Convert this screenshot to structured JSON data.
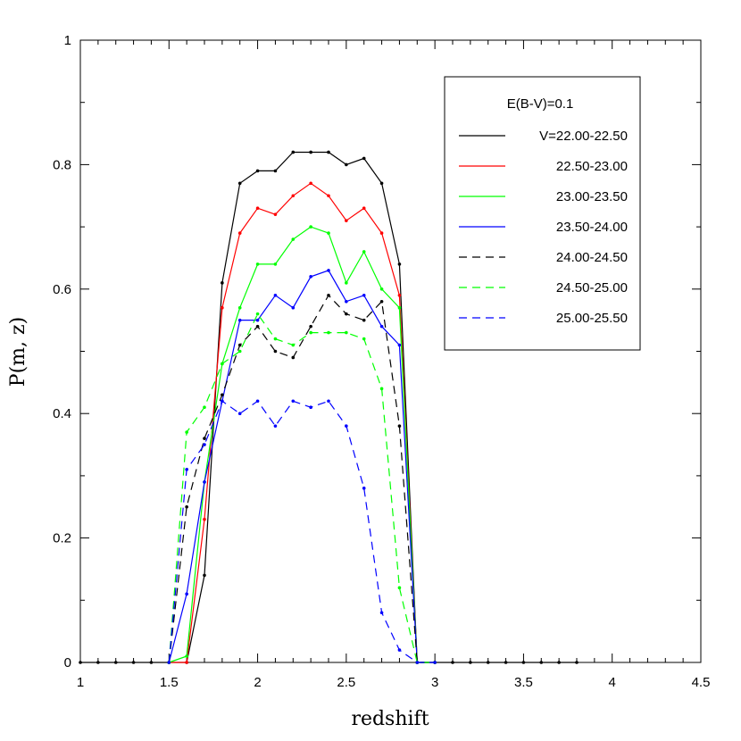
{
  "chart_data": {
    "type": "line",
    "xlabel": "redshift",
    "ylabel": "P(m, z)",
    "xlim": [
      1,
      4.5
    ],
    "ylim": [
      0,
      1
    ],
    "x_ticks": [
      "1",
      "1.5",
      "2",
      "2.5",
      "3",
      "3.5",
      "4",
      "4.5"
    ],
    "y_ticks": [
      "0",
      "0.2",
      "0.4",
      "0.6",
      "0.8",
      "1"
    ],
    "grid": false,
    "legend_position": "top-right",
    "legend_title": "E(B-V)=0.1",
    "series": [
      {
        "name": "V=22.00-22.50",
        "color": "#000000",
        "dash": "solid",
        "x": [
          1.0,
          1.1,
          1.2,
          1.3,
          1.4,
          1.5,
          1.6,
          1.7,
          1.8,
          1.9,
          2.0,
          2.1,
          2.2,
          2.3,
          2.4,
          2.5,
          2.6,
          2.7,
          2.8,
          2.9,
          3.0,
          3.1,
          3.2,
          3.3,
          3.4,
          3.5,
          3.6,
          3.7,
          3.8
        ],
        "y": [
          0,
          0,
          0,
          0,
          0,
          0,
          0,
          0.14,
          0.61,
          0.77,
          0.79,
          0.79,
          0.82,
          0.82,
          0.82,
          0.8,
          0.81,
          0.77,
          0.64,
          0,
          0,
          0,
          0,
          0,
          0,
          0,
          0,
          0,
          0
        ]
      },
      {
        "name": "22.50-23.00",
        "color": "#ff0000",
        "dash": "solid",
        "x": [
          1.5,
          1.6,
          1.7,
          1.8,
          1.9,
          2.0,
          2.1,
          2.2,
          2.3,
          2.4,
          2.5,
          2.6,
          2.7,
          2.8,
          2.9,
          3.0
        ],
        "y": [
          0,
          0,
          0.23,
          0.57,
          0.69,
          0.73,
          0.72,
          0.75,
          0.77,
          0.75,
          0.71,
          0.73,
          0.69,
          0.59,
          0,
          0
        ]
      },
      {
        "name": "23.00-23.50",
        "color": "#00ff00",
        "dash": "solid",
        "x": [
          1.5,
          1.6,
          1.7,
          1.8,
          1.9,
          2.0,
          2.1,
          2.2,
          2.3,
          2.4,
          2.5,
          2.6,
          2.7,
          2.8,
          2.9,
          3.0
        ],
        "y": [
          0,
          0.01,
          0.29,
          0.48,
          0.57,
          0.64,
          0.64,
          0.68,
          0.7,
          0.69,
          0.61,
          0.66,
          0.6,
          0.57,
          0,
          0
        ]
      },
      {
        "name": "23.50-24.00",
        "color": "#0000ff",
        "dash": "solid",
        "x": [
          1.5,
          1.6,
          1.7,
          1.8,
          1.9,
          2.0,
          2.1,
          2.2,
          2.3,
          2.4,
          2.5,
          2.6,
          2.7,
          2.8,
          2.9,
          3.0
        ],
        "y": [
          0,
          0.11,
          0.29,
          0.42,
          0.55,
          0.55,
          0.59,
          0.57,
          0.62,
          0.63,
          0.58,
          0.59,
          0.54,
          0.51,
          0,
          0
        ]
      },
      {
        "name": "24.00-24.50",
        "color": "#000000",
        "dash": "dashed",
        "x": [
          1.5,
          1.6,
          1.7,
          1.8,
          1.9,
          2.0,
          2.1,
          2.2,
          2.3,
          2.4,
          2.5,
          2.6,
          2.7,
          2.8,
          2.9,
          3.0
        ],
        "y": [
          0,
          0.25,
          0.36,
          0.43,
          0.51,
          0.54,
          0.5,
          0.49,
          0.54,
          0.59,
          0.56,
          0.55,
          0.58,
          0.38,
          0,
          0
        ]
      },
      {
        "name": "24.50-25.00",
        "color": "#00ff00",
        "dash": "dashed",
        "x": [
          1.5,
          1.6,
          1.7,
          1.8,
          1.9,
          2.0,
          2.1,
          2.2,
          2.3,
          2.4,
          2.5,
          2.6,
          2.7,
          2.8,
          2.9,
          3.0
        ],
        "y": [
          0,
          0.37,
          0.41,
          0.48,
          0.5,
          0.56,
          0.52,
          0.51,
          0.53,
          0.53,
          0.53,
          0.52,
          0.44,
          0.12,
          0,
          0
        ]
      },
      {
        "name": "25.00-25.50",
        "color": "#0000ff",
        "dash": "dashed",
        "x": [
          1.5,
          1.6,
          1.7,
          1.8,
          1.9,
          2.0,
          2.1,
          2.2,
          2.3,
          2.4,
          2.5,
          2.6,
          2.7,
          2.8,
          2.9,
          3.0
        ],
        "y": [
          0,
          0.31,
          0.35,
          0.42,
          0.4,
          0.42,
          0.38,
          0.42,
          0.41,
          0.42,
          0.38,
          0.28,
          0.08,
          0.02,
          0,
          0
        ]
      }
    ]
  }
}
